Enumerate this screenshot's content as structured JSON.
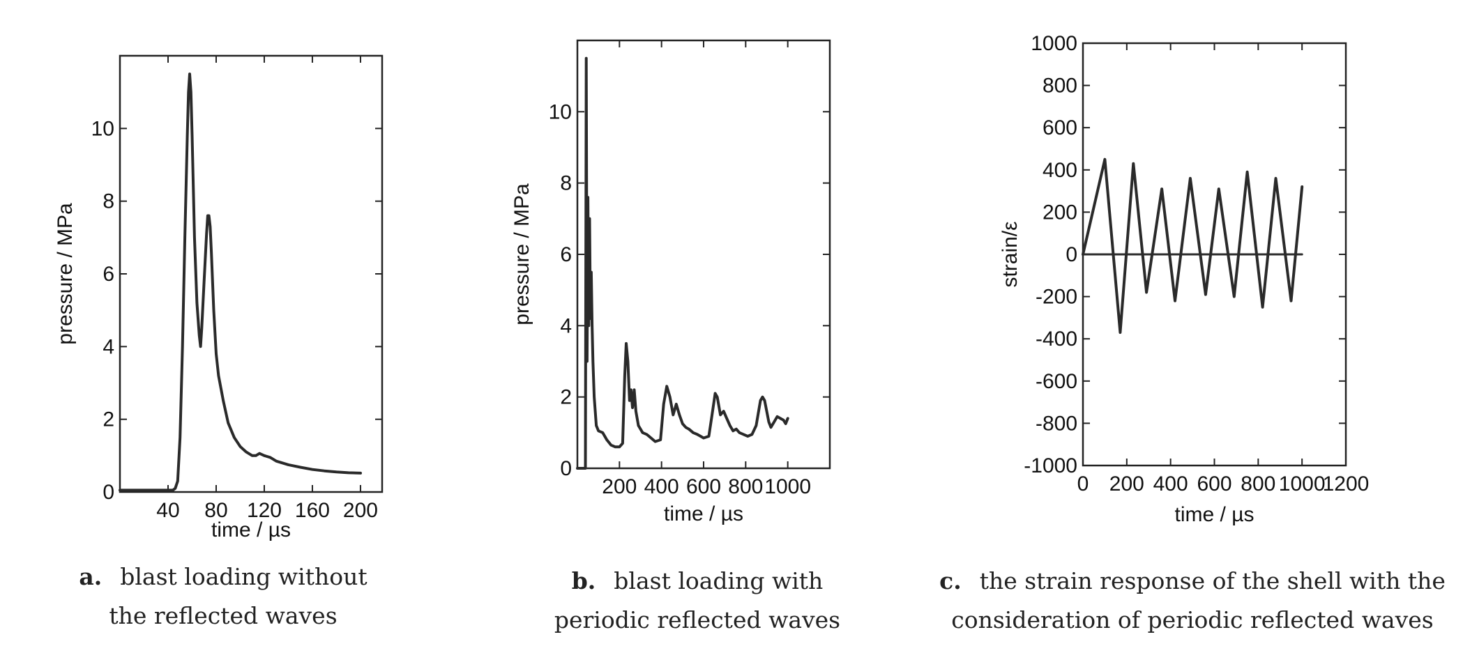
{
  "chart_data": [
    {
      "type": "line",
      "ylabel": "pressure / MPa",
      "xlabel": "time / µs",
      "xlim": [
        0,
        218
      ],
      "ylim": [
        0,
        12
      ],
      "xticks": [
        40,
        80,
        120,
        160,
        200
      ],
      "yticks": [
        0,
        2,
        4,
        6,
        8,
        10
      ],
      "caption_letter": "a.",
      "caption_text": "blast loading without\nthe reflected waves",
      "series": [
        {
          "x": [
            0,
            40,
            44,
            46,
            48,
            50,
            52,
            54,
            56,
            57,
            58,
            59,
            60,
            62,
            64,
            66,
            67,
            68,
            70,
            72,
            73,
            74,
            75,
            76,
            78,
            80,
            82,
            86,
            90,
            95,
            100,
            105,
            110,
            113,
            116,
            120,
            125,
            130,
            140,
            150,
            160,
            170,
            180,
            190,
            200
          ],
          "y": [
            0.05,
            0.05,
            0.05,
            0.1,
            0.3,
            1.5,
            4.0,
            7.0,
            9.8,
            11.0,
            11.5,
            11.0,
            9.8,
            7.0,
            5.2,
            4.3,
            4.0,
            4.5,
            5.8,
            7.1,
            7.6,
            7.6,
            7.3,
            6.6,
            5.0,
            3.8,
            3.2,
            2.5,
            1.9,
            1.5,
            1.25,
            1.1,
            1.0,
            1.0,
            1.06,
            1.0,
            0.95,
            0.85,
            0.75,
            0.68,
            0.62,
            0.58,
            0.55,
            0.53,
            0.52
          ]
        }
      ]
    },
    {
      "type": "line",
      "ylabel": "pressure / MPa",
      "xlabel": "time / µs",
      "xlim": [
        0,
        1200
      ],
      "ylim": [
        0,
        12
      ],
      "xticks": [
        200,
        400,
        600,
        800,
        1000
      ],
      "yticks": [
        0,
        2,
        4,
        6,
        8,
        10
      ],
      "caption_letter": "b.",
      "caption_text": "blast loading with\nperiodic reflected waves",
      "series": [
        {
          "x": [
            0,
            30,
            38,
            42,
            46,
            50,
            54,
            58,
            62,
            66,
            70,
            74,
            80,
            90,
            100,
            120,
            140,
            160,
            180,
            200,
            215,
            225,
            232,
            240,
            248,
            255,
            262,
            270,
            278,
            290,
            310,
            330,
            350,
            370,
            395,
            410,
            425,
            440,
            455,
            470,
            485,
            500,
            515,
            530,
            550,
            570,
            600,
            625,
            640,
            655,
            665,
            680,
            695,
            710,
            725,
            740,
            755,
            770,
            790,
            810,
            830,
            850,
            870,
            880,
            890,
            900,
            910,
            920,
            935,
            950,
            965,
            980,
            990,
            1000
          ],
          "y": [
            0,
            0,
            0,
            11.5,
            3.0,
            7.6,
            4.0,
            7.0,
            4.2,
            5.5,
            4.0,
            3.0,
            2.0,
            1.2,
            1.05,
            1.0,
            0.8,
            0.65,
            0.6,
            0.6,
            0.7,
            2.6,
            3.5,
            3.0,
            1.9,
            2.2,
            1.7,
            2.2,
            1.6,
            1.2,
            1.0,
            0.95,
            0.85,
            0.75,
            0.8,
            1.8,
            2.3,
            2.0,
            1.5,
            1.8,
            1.5,
            1.25,
            1.15,
            1.1,
            1.0,
            0.95,
            0.85,
            0.9,
            1.5,
            2.1,
            2.0,
            1.5,
            1.6,
            1.4,
            1.2,
            1.05,
            1.1,
            1.0,
            0.95,
            0.9,
            0.95,
            1.2,
            1.9,
            2.0,
            1.9,
            1.6,
            1.3,
            1.15,
            1.3,
            1.45,
            1.4,
            1.35,
            1.25,
            1.4
          ]
        }
      ]
    },
    {
      "type": "line",
      "ylabel": "strain/ε",
      "xlabel": "time / µs",
      "xlim": [
        0,
        1200
      ],
      "ylim": [
        -1000,
        1000
      ],
      "xticks": [
        0,
        200,
        400,
        600,
        800,
        1000,
        1200
      ],
      "yticks": [
        -1000,
        -800,
        -600,
        -400,
        -200,
        0,
        200,
        400,
        600,
        800,
        1000
      ],
      "caption_letter": "c.",
      "caption_text": "the strain response of the shell with the\nconsideration of periodic reflected waves",
      "series": [
        {
          "x": [
            0,
            100,
            170,
            230,
            290,
            360,
            420,
            490,
            560,
            620,
            690,
            750,
            820,
            880,
            950,
            1000
          ],
          "y": [
            0,
            450,
            -370,
            430,
            -180,
            310,
            -220,
            360,
            -190,
            310,
            -200,
            390,
            -250,
            360,
            -220,
            320
          ]
        },
        {
          "x": [
            0,
            1000
          ],
          "y": [
            0,
            0
          ]
        }
      ]
    }
  ]
}
